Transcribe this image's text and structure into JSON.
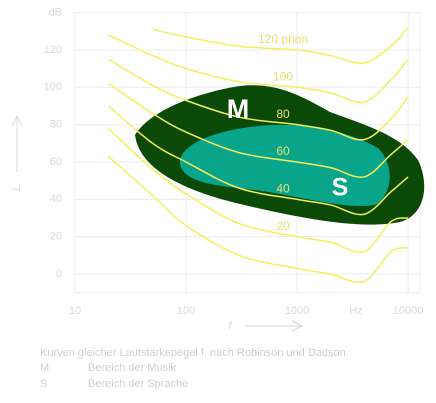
{
  "chart_data": {
    "type": "line",
    "x_scale": "log",
    "x": [
      20,
      50,
      100,
      300,
      1000,
      2000,
      4000,
      7000,
      10000
    ],
    "xlim": [
      10,
      12800
    ],
    "xticks": [
      10,
      100,
      1000,
      10000
    ],
    "x_unit": "Hz",
    "ylim": [
      -10,
      140
    ],
    "yticks": [
      0,
      20,
      40,
      60,
      80,
      100,
      120,
      {
        "value": 140,
        "label": "dB"
      }
    ],
    "grid": true,
    "x_label": "f",
    "y_label": "L",
    "color": "#f4ef5c",
    "series": [
      {
        "name": "120 phon",
        "values": [
          null,
          131,
          127,
          122,
          120,
          117,
          113,
          122,
          132
        ]
      },
      {
        "name": "100",
        "values": [
          128,
          117,
          110,
          103,
          100,
          97,
          92,
          104,
          115
        ]
      },
      {
        "name": "80",
        "values": [
          115,
          101,
          93,
          84,
          80,
          77,
          72,
          83,
          95
        ]
      },
      {
        "name": "60",
        "values": [
          102,
          86,
          76,
          65,
          60,
          57,
          52,
          64,
          72
        ]
      },
      {
        "name": "40",
        "values": [
          90,
          70,
          60,
          46,
          40,
          37,
          32,
          44,
          52
        ]
      },
      {
        "name": "20",
        "values": [
          78,
          56,
          43,
          27,
          20,
          17,
          12,
          28,
          30
        ]
      },
      {
        "values": [
          63,
          42,
          26,
          10,
          3,
          0,
          -4,
          12,
          14
        ]
      }
    ],
    "regions": [
      {
        "name": "M",
        "description": "Bereich der Musik"
      },
      {
        "name": "S",
        "description": "Bereich der Sprache"
      }
    ],
    "caption": "Kurven gleicher Lautstärkepegel f. nach Robinson und Dadson"
  }
}
